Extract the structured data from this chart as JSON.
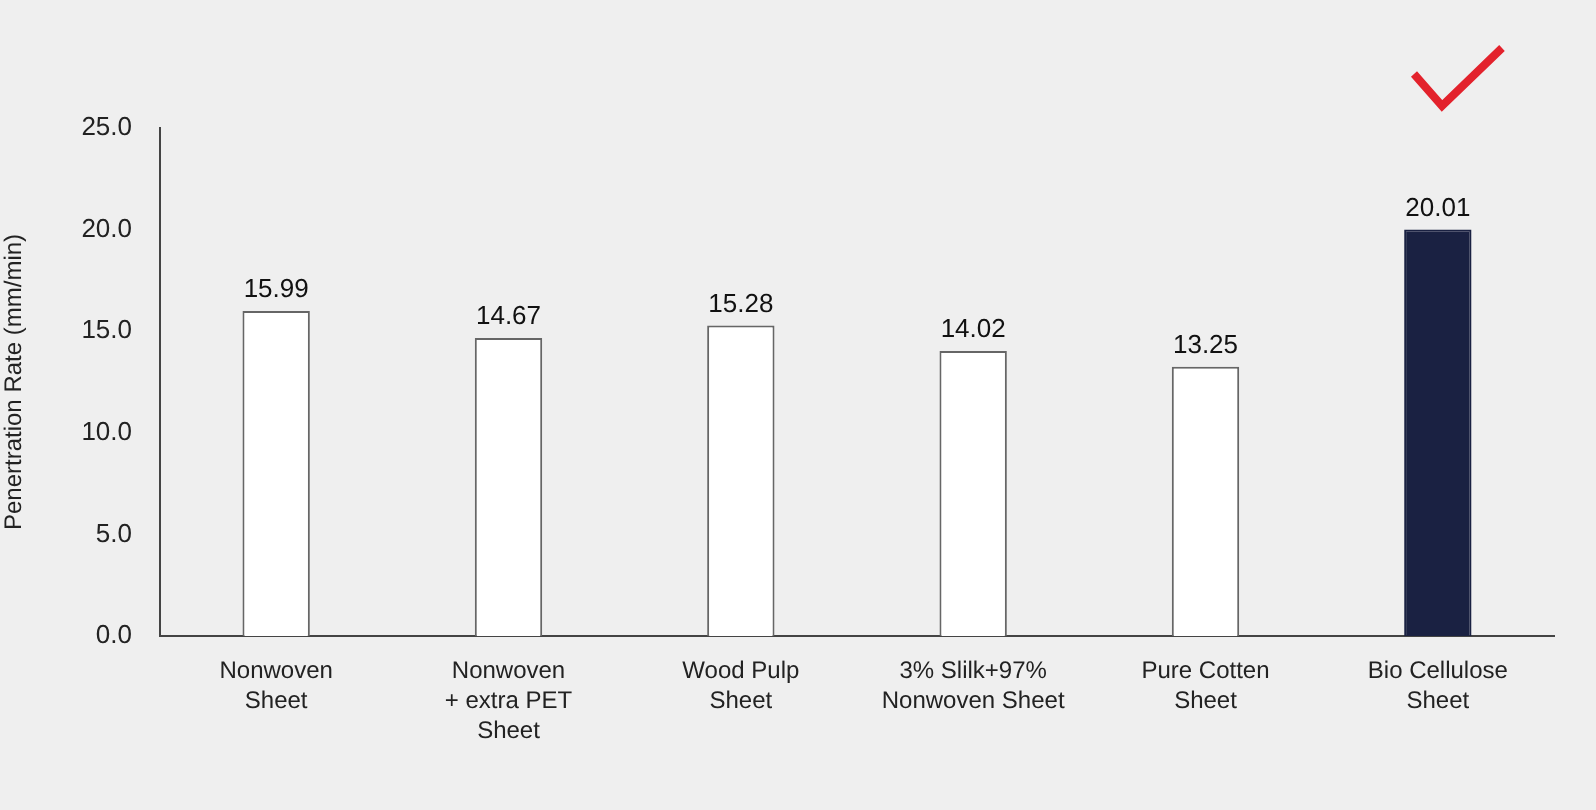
{
  "chart_data": {
    "type": "bar",
    "categories": [
      "Nonwoven\nSheet",
      "Nonwoven\n+ extra PET\nSheet",
      "Wood Pulp\nSheet",
      "3% Slilk+97%\nNonwoven Sheet",
      "Pure Cotten\nSheet",
      "Bio Cellulose\nSheet"
    ],
    "values": [
      15.99,
      14.67,
      15.28,
      14.02,
      13.25,
      20.01
    ],
    "colors": [
      "#ffffff",
      "#ffffff",
      "#ffffff",
      "#ffffff",
      "#ffffff",
      "#1a2142"
    ],
    "ylabel": "Penertration Rate (mm/min)",
    "ylim": [
      0,
      25
    ],
    "yticks": [
      {
        "value": 0,
        "label": "0.0"
      },
      {
        "value": 5,
        "label": "5.0"
      },
      {
        "value": 10,
        "label": "10.0"
      },
      {
        "value": 15,
        "label": "15.0"
      },
      {
        "value": 20,
        "label": "20.0"
      },
      {
        "value": 25,
        "label": "25.0"
      }
    ],
    "data_labels": true,
    "grid": false,
    "legend": false
  }
}
